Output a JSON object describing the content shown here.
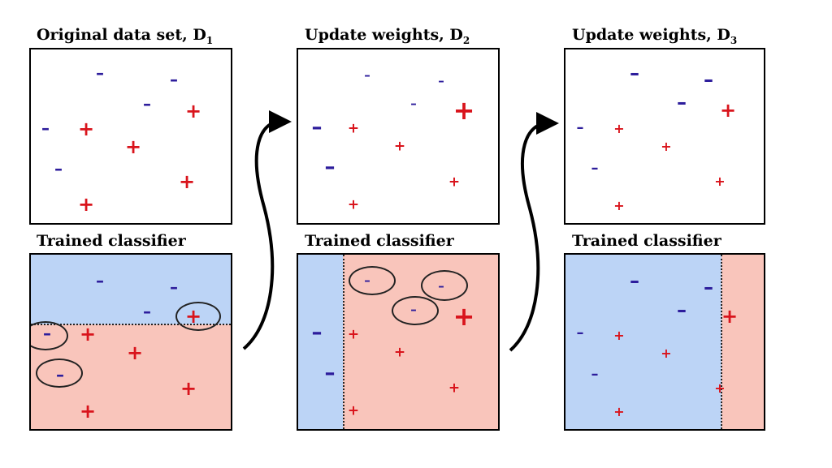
{
  "columns": [
    {
      "title": "Original data set,",
      "subscript": "1",
      "classifier_title": "Trained classifier"
    },
    {
      "title": "Update weights,",
      "subscript": "2",
      "classifier_title": "Trained classifier"
    },
    {
      "title": "Update weights,",
      "subscript": "3",
      "classifier_title": "Trained classifier"
    }
  ],
  "title_letter": "D",
  "plus_symbol": "+",
  "minus_symbol": "–",
  "colors": {
    "plus": "#d9141c",
    "minus": "#2d1d9c",
    "negative_region": "#bcd4f6",
    "positive_region": "#f9c5bb"
  }
}
